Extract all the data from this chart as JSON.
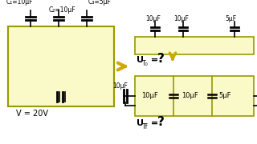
{
  "bg_color": "#ffffff",
  "yellow_light": "#fafac8",
  "yellow_mid": "#f5f5a0",
  "border_color": "#999900",
  "line_color": "#000000",
  "arrow_color": "#ccaa00",
  "text_color": "#000000",
  "V_label": "V = 20V",
  "C1_label": "C₁=10μF",
  "C2_label": "C₂=10μF",
  "C3_label": "C₃=5μF",
  "top_caps": [
    "10μF",
    "10μF",
    "5μF"
  ],
  "UT0_label": "U",
  "UT0_sub": "T₀",
  "UT0_eq": " = ",
  "UT0_q": "?",
  "UTf_label": "U",
  "UTf_sub": "Tf",
  "UTf_eq": " = ",
  "UTf_q": "?",
  "bot_left_cap": "10μF",
  "bot_mid_cap": "10μF",
  "bot_right_cap": "5μF"
}
